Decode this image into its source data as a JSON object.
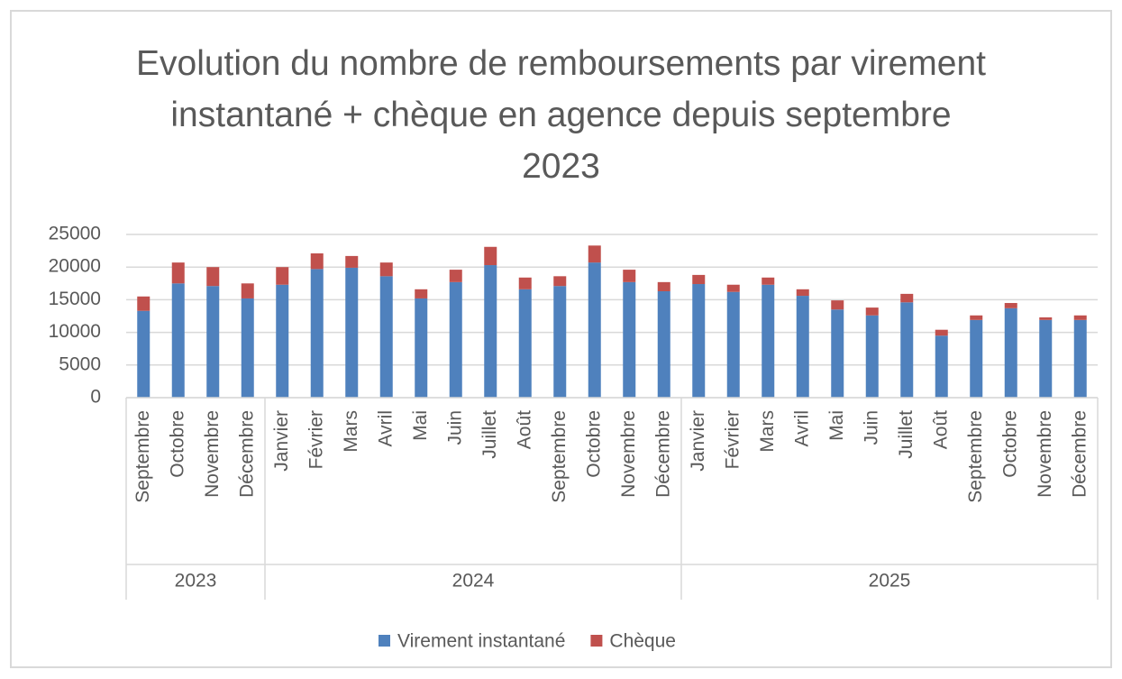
{
  "chart_data": {
    "type": "stacked_bar",
    "title": "Evolution du nombre de remboursements par virement instantané + chèque en agence depuis septembre 2023",
    "categories": [
      "Septembre",
      "Octobre",
      "Novembre",
      "Décembre",
      "Janvier",
      "Février",
      "Mars",
      "Avril",
      "Mai",
      "Juin",
      "Juillet",
      "Août",
      "Septembre",
      "Octobre",
      "Novembre",
      "Décembre",
      "Janvier",
      "Février",
      "Mars",
      "Avril",
      "Mai",
      "Juin",
      "Juillet",
      "Août",
      "Septembre",
      "Octobre",
      "Novembre",
      "Décembre"
    ],
    "groups": [
      {
        "label": "2023",
        "count": 4
      },
      {
        "label": "2024",
        "count": 12
      },
      {
        "label": "2025",
        "count": 12
      }
    ],
    "series": [
      {
        "name": "Virement instantané",
        "color": "#4f81bd",
        "values": [
          13300,
          17500,
          17100,
          15200,
          17300,
          19700,
          19900,
          18600,
          15200,
          17700,
          20300,
          16600,
          17100,
          20700,
          17700,
          16300,
          17400,
          16200,
          17300,
          15600,
          13500,
          12600,
          14600,
          9500,
          11900,
          13700,
          11900,
          11900
        ]
      },
      {
        "name": "Chèque",
        "color": "#c0504d",
        "values": [
          2200,
          3200,
          2900,
          2300,
          2700,
          2400,
          1800,
          2100,
          1400,
          1900,
          2800,
          1800,
          1500,
          2600,
          1900,
          1400,
          1400,
          1100,
          1100,
          1000,
          1400,
          1200,
          1300,
          900,
          700,
          800,
          400,
          700
        ]
      }
    ],
    "ylim": [
      0,
      25000
    ],
    "yticks": [
      0,
      5000,
      10000,
      15000,
      20000,
      25000
    ],
    "grid": true,
    "legend": "bottom"
  }
}
